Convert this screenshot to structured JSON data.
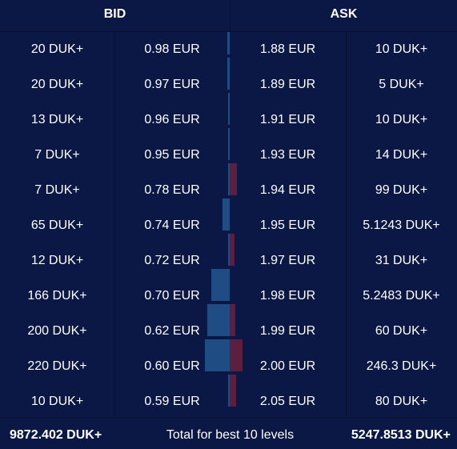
{
  "header": {
    "bid_label": "BID",
    "ask_label": "ASK"
  },
  "bids": [
    {
      "qty": "20 DUK+",
      "price": "0.98 EUR",
      "share": 0.02
    },
    {
      "qty": "20 DUK+",
      "price": "0.97 EUR",
      "share": 0.02
    },
    {
      "qty": "13 DUK+",
      "price": "0.96 EUR",
      "share": 0.013
    },
    {
      "qty": "7 DUK+",
      "price": "0.95 EUR",
      "share": 0.007
    },
    {
      "qty": "7 DUK+",
      "price": "0.78 EUR",
      "share": 0.007
    },
    {
      "qty": "65 DUK+",
      "price": "0.74 EUR",
      "share": 0.065
    },
    {
      "qty": "12 DUK+",
      "price": "0.72 EUR",
      "share": 0.012
    },
    {
      "qty": "166 DUK+",
      "price": "0.70 EUR",
      "share": 0.166
    },
    {
      "qty": "200 DUK+",
      "price": "0.62 EUR",
      "share": 0.2
    },
    {
      "qty": "220 DUK+",
      "price": "0.60 EUR",
      "share": 0.22
    },
    {
      "qty": "10 DUK+",
      "price": "0.59 EUR",
      "share": 0.01
    }
  ],
  "asks": [
    {
      "price": "1.88 EUR",
      "qty": "10 DUK+",
      "share": 0.0
    },
    {
      "price": "1.89 EUR",
      "qty": "5 DUK+",
      "share": 0.0
    },
    {
      "price": "1.91 EUR",
      "qty": "10 DUK+",
      "share": 0.0
    },
    {
      "price": "1.93 EUR",
      "qty": "14 DUK+",
      "share": 0.0
    },
    {
      "price": "1.94 EUR",
      "qty": "99 DUK+",
      "share": 0.099
    },
    {
      "price": "1.95 EUR",
      "qty": "5.1243 DUK+",
      "share": 0.0
    },
    {
      "price": "1.97 EUR",
      "qty": "31 DUK+",
      "share": 0.031
    },
    {
      "price": "1.98 EUR",
      "qty": "5.2483 DUK+",
      "share": 0.0
    },
    {
      "price": "1.99 EUR",
      "qty": "60 DUK+",
      "share": 0.06
    },
    {
      "price": "2.00 EUR",
      "qty": "246.3 DUK+",
      "share": 0.246
    },
    {
      "price": "2.05 EUR",
      "qty": "80 DUK+",
      "share": 0.08
    }
  ],
  "footer": {
    "total_bid": "9872.402 DUK+",
    "caption": "Total for best 10 levels",
    "total_ask": "5247.8513 DUK+"
  },
  "colors": {
    "background": "#0b1845",
    "bid_bar": "#1f4d83",
    "ask_bar": "#5c1f3e",
    "divider": "#07112f"
  }
}
